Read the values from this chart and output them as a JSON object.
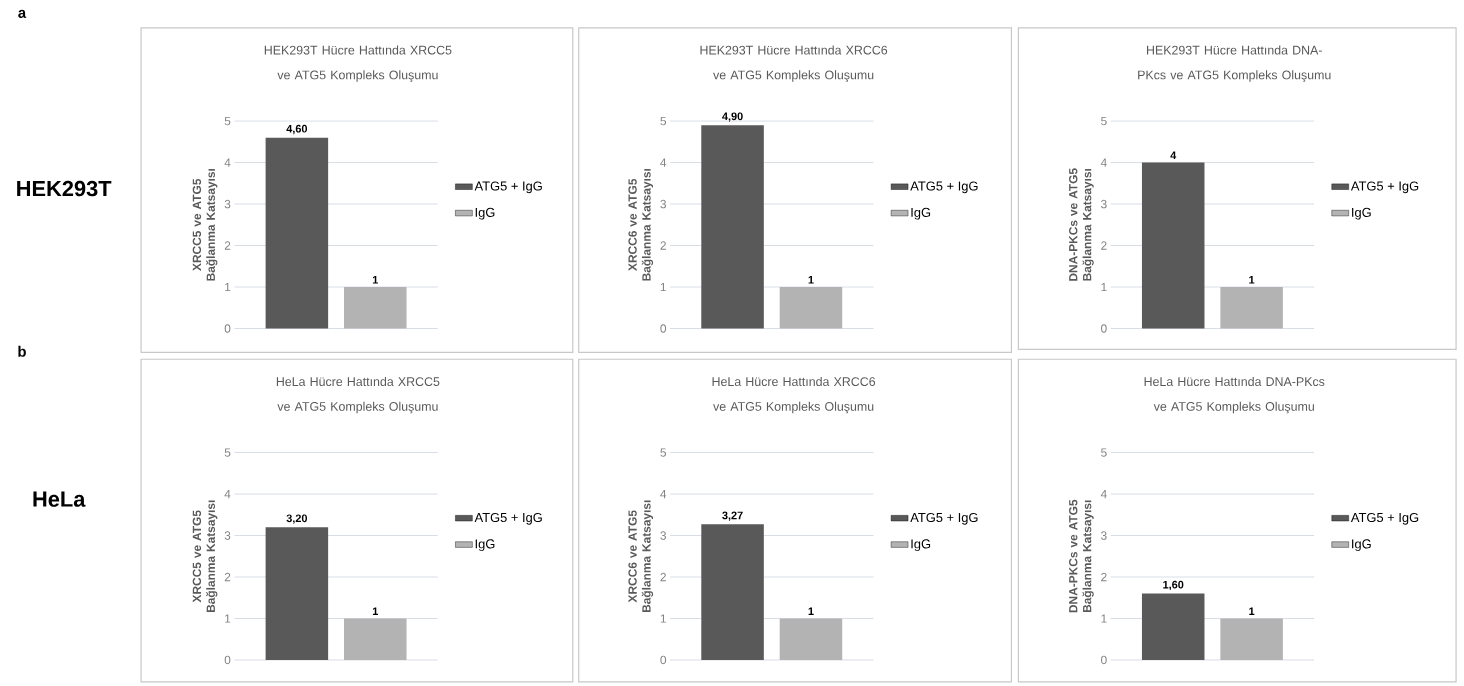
{
  "chart_data": [
    {
      "type": "bar",
      "title": "HEK293T Hücre Hattında XRCC5 ve ATG5 Kompleks Oluşumu",
      "ylabel": "XRCC5 ve ATG5 Bağlanma Katsayısı",
      "categories": [
        null
      ],
      "series": [
        {
          "name": "ATG5 + IgG",
          "color": "#595959",
          "values": [
            4.6
          ],
          "value_labels": [
            "4,60"
          ]
        },
        {
          "name": "IgG",
          "color": "#b3b3b3",
          "values": [
            1
          ],
          "value_labels": [
            "1"
          ]
        }
      ],
      "ylim": [
        0,
        5
      ],
      "yticks": [
        0,
        1,
        2,
        3,
        4,
        5
      ],
      "grid": "y",
      "legend": "right",
      "annotations": [
        "a",
        "HEK293T"
      ]
    },
    {
      "type": "bar",
      "title": "HEK293T Hücre Hattında XRCC6 ve ATG5 Kompleks Oluşumu",
      "ylabel": "XRCC6 ve ATG5 Bağlanma Katsayısı",
      "categories": [
        null
      ],
      "series": [
        {
          "name": "ATG5 + IgG",
          "color": "#595959",
          "values": [
            4.9
          ],
          "value_labels": [
            "4,90"
          ]
        },
        {
          "name": "IgG",
          "color": "#b3b3b3",
          "values": [
            1
          ],
          "value_labels": [
            "1"
          ]
        }
      ],
      "ylim": [
        0,
        5
      ],
      "yticks": [
        0,
        1,
        2,
        3,
        4,
        5
      ],
      "grid": "y",
      "legend": "right"
    },
    {
      "type": "bar",
      "title": "HEK293T Hücre Hattında DNA-PKcs ve ATG5 Kompleks Oluşumu",
      "ylabel": "DNA-PKCs ve ATG5 Bağlanma Katsayısı",
      "categories": [
        null
      ],
      "series": [
        {
          "name": "ATG5 + IgG",
          "color": "#595959",
          "values": [
            4
          ],
          "value_labels": [
            "4"
          ]
        },
        {
          "name": "IgG",
          "color": "#b3b3b3",
          "values": [
            1
          ],
          "value_labels": [
            "1"
          ]
        }
      ],
      "ylim": [
        0,
        5
      ],
      "yticks": [
        0,
        1,
        2,
        3,
        4,
        5
      ],
      "grid": "y",
      "legend": "right"
    },
    {
      "type": "bar",
      "title": "HeLa Hücre Hattında XRCC5 ve ATG5 Kompleks Oluşumu",
      "ylabel": "XRCC5 ve ATG5 Bağlanma Katsayısı",
      "categories": [
        null
      ],
      "series": [
        {
          "name": "ATG5 + IgG",
          "color": "#595959",
          "values": [
            3.2
          ],
          "value_labels": [
            "3,20"
          ]
        },
        {
          "name": "IgG",
          "color": "#b3b3b3",
          "values": [
            1
          ],
          "value_labels": [
            "1"
          ]
        }
      ],
      "ylim": [
        0,
        5
      ],
      "yticks": [
        0,
        1,
        2,
        3,
        4,
        5
      ],
      "grid": "y",
      "legend": "right",
      "annotations": [
        "b",
        "HeLa"
      ]
    },
    {
      "type": "bar",
      "title": "HeLa Hücre Hattında XRCC6 ve ATG5 Kompleks Oluşumu",
      "ylabel": "XRCC6 ve ATG5 Bağlanma Katsayısı",
      "categories": [
        null
      ],
      "series": [
        {
          "name": "ATG5 + IgG",
          "color": "#595959",
          "values": [
            3.27
          ],
          "value_labels": [
            "3,27"
          ]
        },
        {
          "name": "IgG",
          "color": "#b3b3b3",
          "values": [
            1
          ],
          "value_labels": [
            "1"
          ]
        }
      ],
      "ylim": [
        0,
        5
      ],
      "yticks": [
        0,
        1,
        2,
        3,
        4,
        5
      ],
      "grid": "y",
      "legend": "right"
    },
    {
      "type": "bar",
      "title": "HeLa Hücre Hattında DNA-PKcs ve ATG5 Kompleks Oluşumu",
      "ylabel": "DNA-PKCs ve ATG5 Bağlanma Katsayısı",
      "categories": [
        null
      ],
      "series": [
        {
          "name": "ATG5 + IgG",
          "color": "#595959",
          "values": [
            1.6
          ],
          "value_labels": [
            "1,60"
          ]
        },
        {
          "name": "IgG",
          "color": "#b3b3b3",
          "values": [
            1
          ],
          "value_labels": [
            "1"
          ]
        }
      ],
      "ylim": [
        0,
        5
      ],
      "yticks": [
        0,
        1,
        2,
        3,
        4,
        5
      ],
      "grid": "y",
      "legend": "right"
    }
  ]
}
